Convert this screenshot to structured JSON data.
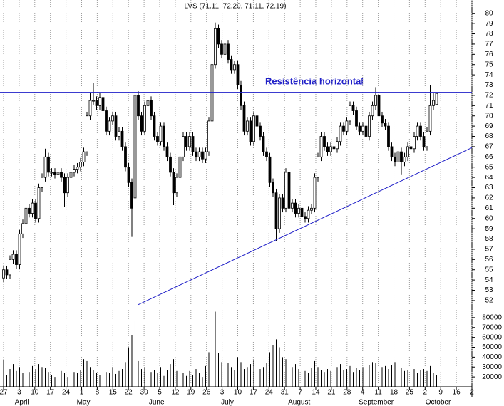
{
  "chart_data": {
    "type": "candlestick",
    "title": "LVS (71.11, 72.29, 71.11, 72.19)",
    "color": "#000000",
    "xlim": [
      -1.11,
      146
    ],
    "ylim": [
      51.3,
      81.3
    ],
    "yticks": [
      52,
      53,
      54,
      55,
      56,
      57,
      58,
      59,
      60,
      61,
      62,
      63,
      64,
      65,
      66,
      67,
      68,
      69,
      70,
      71,
      72,
      73,
      74,
      75,
      76,
      77,
      78,
      79,
      80
    ],
    "xticks": [
      {
        "value": 0,
        "label": "27"
      },
      {
        "value": 4.87,
        "label": "3"
      },
      {
        "value": 9.73,
        "label": "10"
      },
      {
        "value": 14.6,
        "label": "17"
      },
      {
        "value": 19.47,
        "label": "24"
      },
      {
        "value": 24.33,
        "label": "1"
      },
      {
        "value": 29.2,
        "label": "8"
      },
      {
        "value": 34.07,
        "label": "15"
      },
      {
        "value": 38.93,
        "label": "22"
      },
      {
        "value": 43.8,
        "label": "30"
      },
      {
        "value": 48.67,
        "label": "5"
      },
      {
        "value": 53.53,
        "label": "12"
      },
      {
        "value": 58.4,
        "label": "19"
      },
      {
        "value": 63.27,
        "label": "26"
      },
      {
        "value": 68.13,
        "label": "3"
      },
      {
        "value": 73,
        "label": "10"
      },
      {
        "value": 77.87,
        "label": "17"
      },
      {
        "value": 82.73,
        "label": "24"
      },
      {
        "value": 87.6,
        "label": "31"
      },
      {
        "value": 92.47,
        "label": "7"
      },
      {
        "value": 97.33,
        "label": "14"
      },
      {
        "value": 102.2,
        "label": "21"
      },
      {
        "value": 107.07,
        "label": "28"
      },
      {
        "value": 111.93,
        "label": "4"
      },
      {
        "value": 116.8,
        "label": "11"
      },
      {
        "value": 121.67,
        "label": "18"
      },
      {
        "value": 126.53,
        "label": "25"
      },
      {
        "value": 131.4,
        "label": "2"
      },
      {
        "value": 136.27,
        "label": "9"
      },
      {
        "value": 141.13,
        "label": "16"
      },
      {
        "value": 146,
        "label": "2"
      }
    ],
    "months": [
      {
        "value": 3.5,
        "label": "April"
      },
      {
        "value": 22.8,
        "label": "May"
      },
      {
        "value": 45.3,
        "label": "June"
      },
      {
        "value": 67.8,
        "label": "July"
      },
      {
        "value": 88.7,
        "label": "August"
      },
      {
        "value": 110.7,
        "label": "September"
      },
      {
        "value": 131.5,
        "label": "October"
      }
    ],
    "x": [
      0,
      1,
      2,
      3,
      4,
      5,
      6,
      7,
      8,
      9,
      10,
      11,
      12,
      13,
      14,
      15,
      16,
      17,
      18,
      19,
      20,
      21,
      22,
      23,
      24,
      25,
      26,
      27,
      28,
      29,
      30,
      31,
      32,
      33,
      34,
      35,
      36,
      37,
      38,
      39,
      40,
      41,
      42,
      43,
      44,
      45,
      46,
      47,
      48,
      49,
      50,
      51,
      52,
      53,
      54,
      55,
      56,
      57,
      58,
      59,
      60,
      61,
      62,
      63,
      64,
      65,
      66,
      67,
      68,
      69,
      70,
      71,
      72,
      73,
      74,
      75,
      76,
      77,
      78,
      79,
      80,
      81,
      82,
      83,
      84,
      85,
      86,
      87,
      88,
      89,
      90,
      91,
      92,
      93,
      94,
      95,
      96,
      97,
      98,
      99,
      100,
      101,
      102,
      103,
      104,
      105,
      106,
      107,
      108,
      109,
      110,
      111,
      112,
      113,
      114,
      115,
      116,
      117,
      118,
      119,
      120,
      121,
      122,
      123,
      124,
      125,
      126,
      127,
      128,
      129,
      130,
      131,
      132,
      133,
      134,
      135
    ],
    "open": [
      54.2,
      55,
      54.5,
      56,
      56.5,
      55.5,
      58.5,
      59.5,
      61,
      60.5,
      61.5,
      60,
      63,
      64,
      66,
      64.5,
      64.5,
      64.3,
      64.5,
      64,
      62.5,
      64,
      64.5,
      64.8,
      65,
      65.5,
      66.5,
      70,
      71.5,
      71.5,
      71,
      71.8,
      70.5,
      68.5,
      69.5,
      70,
      68,
      68.5,
      67,
      65,
      63.5,
      62,
      72,
      70,
      68.5,
      71,
      71.5,
      70,
      68,
      67.5,
      69,
      67,
      66,
      64.5,
      62.5,
      64,
      66,
      68,
      67,
      68,
      66.5,
      66,
      66.5,
      65.8,
      66.5,
      69.5,
      75,
      78.5,
      77,
      76,
      77,
      75.5,
      74.5,
      75,
      73,
      71,
      68.5,
      69.5,
      67.5,
      70,
      69,
      68,
      66.5,
      66,
      63.5,
      62.5,
      59,
      62,
      61,
      64.5,
      61,
      61.5,
      60.5,
      61,
      60.2,
      60,
      60.8,
      61,
      64,
      66,
      68,
      67,
      66.5,
      67,
      66.8,
      67.5,
      69,
      68.5,
      69.5,
      71,
      70.5,
      69,
      68.5,
      69,
      68,
      70,
      71,
      72,
      70,
      69.3,
      69,
      67,
      66,
      65.5,
      66.5,
      65.5,
      66,
      67,
      66.8,
      68,
      69,
      68,
      67,
      68.5,
      71,
      71.11
    ],
    "high": [
      55.4,
      55.4,
      56.4,
      56.9,
      56.9,
      58.9,
      59.9,
      61.4,
      61.4,
      61.9,
      61.9,
      63.4,
      64.4,
      66.8,
      66.4,
      64.9,
      64.9,
      64.9,
      64.9,
      64.4,
      64.4,
      64.9,
      65.2,
      65.4,
      65.9,
      66.9,
      70.4,
      72.3,
      73.2,
      71.9,
      72.2,
      72.2,
      70.9,
      69.9,
      70.4,
      70.4,
      68.9,
      68.9,
      67.4,
      65.4,
      63.9,
      72.4,
      72.4,
      70.4,
      71.4,
      71.9,
      71.9,
      70.4,
      68.4,
      69.4,
      69.4,
      67.4,
      66.4,
      64.9,
      64.4,
      66.4,
      68.4,
      68.4,
      68.4,
      68.4,
      66.9,
      66.9,
      66.9,
      66.9,
      69.9,
      75.4,
      79.1,
      78.9,
      77.4,
      77.4,
      77.4,
      75.9,
      75.4,
      75.4,
      73.4,
      71.4,
      69.9,
      69.9,
      70.4,
      70.4,
      69.4,
      68.4,
      66.9,
      66.4,
      63.9,
      62.9,
      62.4,
      62.4,
      64.9,
      64.9,
      61.9,
      61.9,
      61.4,
      61.4,
      60.6,
      61.2,
      61.4,
      64.4,
      66.4,
      68.4,
      68.4,
      67.4,
      67.4,
      67.4,
      67.9,
      69.4,
      69.4,
      69.9,
      71.4,
      71.4,
      70.9,
      69.4,
      69.4,
      69.4,
      70.4,
      71.4,
      72.8,
      72.4,
      70.4,
      69.7,
      69.4,
      67.4,
      66.4,
      66.9,
      66.9,
      66.4,
      67.4,
      67.4,
      68.4,
      69.4,
      69.4,
      68.4,
      68.9,
      73,
      72.2,
      72.29
    ],
    "low": [
      53.8,
      54.1,
      54.1,
      55.6,
      55.1,
      55.1,
      58.1,
      59.1,
      60.1,
      60.1,
      59.6,
      59.6,
      62.6,
      63.6,
      64.1,
      64.1,
      63.9,
      63.9,
      63.6,
      61.1,
      62.1,
      63.6,
      64.1,
      64.4,
      64.6,
      65.1,
      66.1,
      69.6,
      71.1,
      70.6,
      70.6,
      70.1,
      68.1,
      68.1,
      69.1,
      67.6,
      67.6,
      66.6,
      64.6,
      63.1,
      58.2,
      61.6,
      69.6,
      68.1,
      68.1,
      70.6,
      69.6,
      67.6,
      67.1,
      67.1,
      66.6,
      65.6,
      64.1,
      61.3,
      62.1,
      63.6,
      65.6,
      66.6,
      66.6,
      66.1,
      65.6,
      65.6,
      65.4,
      65.4,
      66.1,
      69.1,
      74.6,
      76.6,
      75.6,
      75.6,
      75.1,
      74.1,
      74.1,
      72.6,
      70.6,
      68.1,
      68.1,
      67.1,
      67.1,
      68.6,
      67.6,
      66.1,
      65.6,
      63.1,
      62.1,
      57.8,
      58.6,
      60.6,
      60.6,
      60.6,
      60.6,
      60.1,
      60.1,
      59.2,
      59.6,
      59.6,
      60.4,
      60.6,
      63.6,
      65.6,
      66.6,
      66.1,
      66.1,
      66.4,
      66.4,
      67.1,
      68.1,
      68.1,
      69.1,
      70.1,
      68.6,
      68.1,
      68.1,
      67.6,
      67.6,
      69.6,
      70.6,
      69.6,
      68.9,
      68.6,
      66.6,
      65.6,
      65.1,
      65.1,
      64.3,
      65.1,
      65.6,
      66.4,
      66.4,
      67.6,
      67.6,
      66.6,
      66.6,
      68.1,
      70.6,
      71.11
    ],
    "close": [
      55,
      54.5,
      56,
      56.5,
      55.5,
      58.5,
      59.5,
      61,
      60.5,
      61.5,
      60,
      63,
      64,
      66,
      64.5,
      64.5,
      64.3,
      64.5,
      64,
      62.5,
      64,
      64.5,
      64.8,
      65,
      65.5,
      66.5,
      70,
      71.5,
      71.5,
      71,
      71.8,
      70.5,
      68.5,
      69.5,
      70,
      68,
      68.5,
      67,
      65,
      63.5,
      61,
      72,
      70,
      68.5,
      71,
      71.5,
      70,
      68,
      67.5,
      69,
      67,
      66,
      64.5,
      62.5,
      64,
      66,
      68,
      67,
      68,
      66.5,
      66,
      66.5,
      65.8,
      66.5,
      69.5,
      75,
      78.5,
      77,
      76,
      77,
      75.5,
      74.5,
      75,
      73,
      71,
      68.5,
      69.5,
      67.5,
      70,
      69,
      68,
      66.5,
      66,
      63.5,
      62.5,
      59,
      62,
      61,
      64.5,
      61,
      61.5,
      60.5,
      61,
      60.2,
      60,
      60.8,
      61,
      64,
      66,
      68,
      67,
      66.5,
      67,
      66.8,
      67.5,
      69,
      68.5,
      69.5,
      71,
      70.5,
      69,
      68.5,
      69,
      68,
      70,
      71,
      72,
      70,
      69.3,
      69,
      67,
      66,
      65.5,
      66.5,
      65.5,
      66,
      67,
      66.8,
      68,
      69,
      68,
      67,
      68.5,
      71,
      71.5,
      72.19
    ],
    "volume": {
      "ylim": [
        10000,
        90000
      ],
      "yticks": [
        20000,
        30000,
        40000,
        50000,
        60000,
        70000,
        80000
      ],
      "values": [
        37000,
        22000,
        28000,
        33000,
        26000,
        30000,
        24000,
        20000,
        25000,
        31000,
        28000,
        33000,
        30000,
        29000,
        25000,
        22000,
        20000,
        23000,
        26000,
        24000,
        20000,
        22000,
        25000,
        24000,
        27000,
        38000,
        36000,
        30000,
        27000,
        24000,
        22000,
        26000,
        25000,
        24000,
        30000,
        23000,
        26000,
        28000,
        35000,
        50000,
        62000,
        76000,
        36000,
        28000,
        30000,
        22000,
        25000,
        27000,
        24000,
        30000,
        21000,
        27000,
        33000,
        38000,
        26000,
        22000,
        24000,
        21000,
        26000,
        22000,
        28000,
        24000,
        20000,
        31000,
        45000,
        58000,
        86000,
        44000,
        35000,
        38000,
        34000,
        30000,
        27000,
        40000,
        35000,
        28000,
        30000,
        33000,
        37000,
        25000,
        28000,
        30000,
        34000,
        45000,
        52000,
        58000,
        50000,
        40000,
        38000,
        44000,
        30000,
        33000,
        28000,
        30000,
        26000,
        24000,
        29000,
        36000,
        30000,
        27000,
        25000,
        28000,
        26000,
        24000,
        30000,
        33000,
        27000,
        28000,
        31000,
        25000,
        29000,
        27000,
        30000,
        26000,
        32000,
        35000,
        34000,
        33000,
        30000,
        31000,
        28000,
        32000,
        35000,
        30000,
        29000,
        26000,
        27000,
        25000,
        28000,
        24000,
        27000,
        28000,
        26000,
        31000,
        24000,
        22000
      ]
    },
    "lines": [
      {
        "name": "Resistência horizontal",
        "color": "#1f1fc8",
        "x": [
          -1.11,
          146
        ],
        "y": [
          72.3,
          72.3
        ]
      },
      {
        "color": "#1f1fc8",
        "x": [
          42,
          146
        ],
        "y": [
          51.6,
          66.9
        ]
      }
    ]
  }
}
